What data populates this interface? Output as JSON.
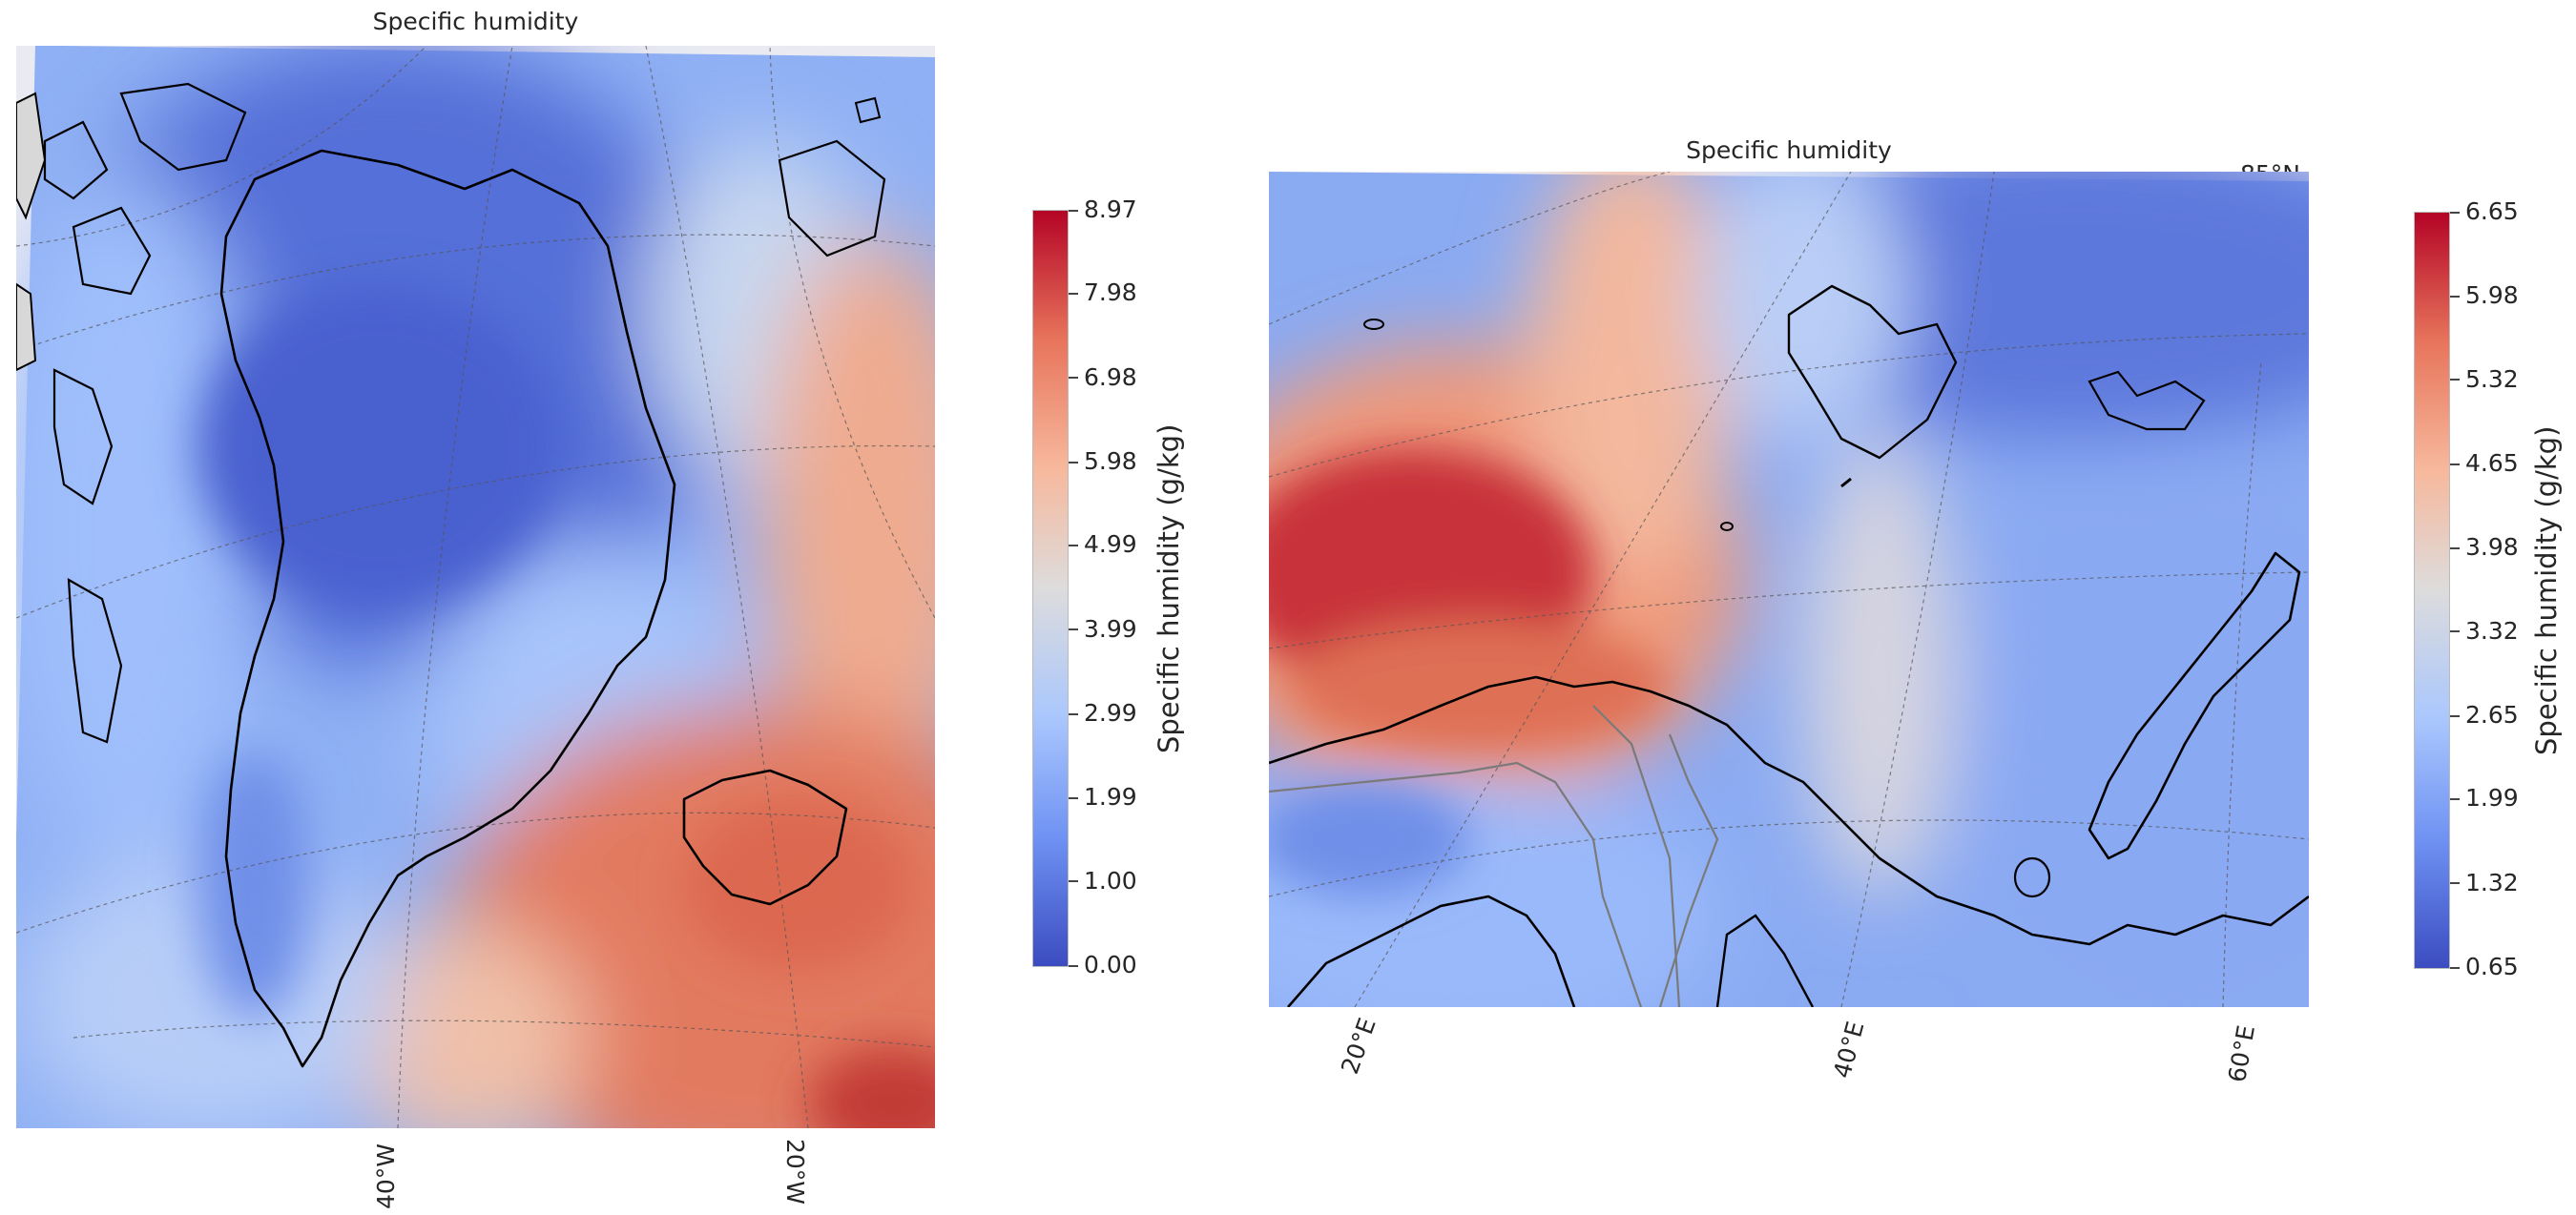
{
  "left_panel": {
    "title": "Specific humidity",
    "colorbar": {
      "label": "Specific humidity (g/kg)",
      "ticks": [
        "8.97",
        "7.98",
        "6.98",
        "5.98",
        "4.99",
        "3.99",
        "2.99",
        "1.99",
        "1.00",
        "0.00"
      ],
      "min": 0.0,
      "max": 8.97
    },
    "lon_labels": [
      "40°W",
      "20°W"
    ]
  },
  "right_panel": {
    "title": "Specific humidity",
    "corner_label": "85°N",
    "colorbar": {
      "label": "Specific humidity (g/kg)",
      "ticks": [
        "6.65",
        "5.98",
        "5.32",
        "4.65",
        "3.98",
        "3.32",
        "2.65",
        "1.99",
        "1.32",
        "0.65"
      ],
      "min": 0.65,
      "max": 6.65
    },
    "lon_labels": [
      "20°E",
      "40°E",
      "60°E"
    ]
  },
  "colormap": {
    "name": "coolwarm",
    "stops": [
      "#3b4cc0",
      "#6f92f3",
      "#aac7fd",
      "#dddcdc",
      "#f7b89c",
      "#e7745b",
      "#b40426"
    ]
  }
}
